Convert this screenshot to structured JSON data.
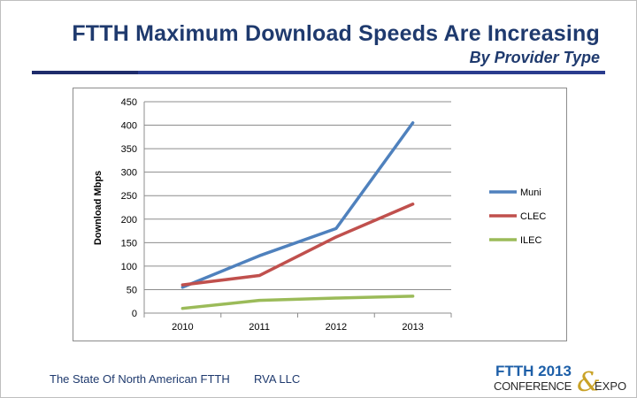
{
  "header": {
    "title": "FTTH Maximum Download Speeds Are Increasing",
    "subtitle": "By Provider Type"
  },
  "footer": {
    "left_text": "The State Of North American FTTH",
    "right_text": "RVA LLC",
    "logo_line1": "FTTH 2013",
    "logo_line2": "CONFERENCE",
    "logo_amp": "&",
    "logo_line3": "EXPO"
  },
  "chart_data": {
    "type": "line",
    "title": "",
    "xlabel": "",
    "ylabel": "Download Mbps",
    "categories": [
      "2010",
      "2011",
      "2012",
      "2013"
    ],
    "ylim": [
      0,
      450
    ],
    "yticks": [
      0,
      50,
      100,
      150,
      200,
      250,
      300,
      350,
      400,
      450
    ],
    "grid": true,
    "legend_position": "right",
    "series": [
      {
        "name": "Muni",
        "color": "#4f81bd",
        "values": [
          55,
          122,
          180,
          405
        ]
      },
      {
        "name": "CLEC",
        "color": "#c0504d",
        "values": [
          60,
          80,
          162,
          232
        ]
      },
      {
        "name": "ILEC",
        "color": "#9bbb59",
        "values": [
          10,
          27,
          32,
          36
        ]
      }
    ]
  }
}
